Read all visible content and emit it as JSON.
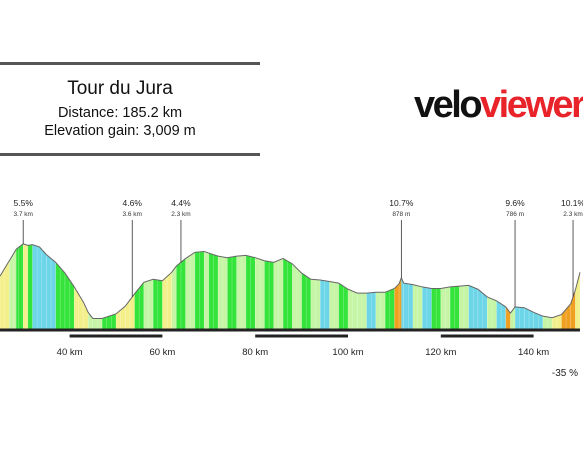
{
  "header": {
    "title": "Tour du Jura",
    "distance": "Distance: 185.2 km",
    "elevation_gain": "Elevation gain: 3,009 m"
  },
  "logo": {
    "part1": "velo",
    "part2": "viewer"
  },
  "colors": {
    "brand_red": "#e8232a",
    "grade_yellow": "#f3f08c",
    "grade_pale_green": "#c5f5a5",
    "grade_green": "#35e43a",
    "grade_cyan": "#6cd6e8",
    "grade_orange": "#f0a020"
  },
  "chart_data": {
    "type": "area",
    "title": "",
    "xlabel": "",
    "ylabel": "",
    "x_unit": "km",
    "xlim": [
      25,
      150
    ],
    "x_ticks": [
      "40 km",
      "60 km",
      "80 km",
      "100 km",
      "120 km",
      "140 km"
    ],
    "x_tick_values": [
      40,
      60,
      80,
      100,
      120,
      140
    ],
    "ylim": [
      0,
      1300
    ],
    "profile_km": [
      25,
      27,
      28.5,
      30,
      31,
      32,
      33.5,
      35,
      37,
      39,
      41,
      43,
      44,
      45,
      47,
      50,
      52,
      54,
      56,
      58,
      60,
      62,
      63,
      65,
      67,
      69,
      70,
      72,
      74,
      76,
      78,
      80,
      82,
      84,
      86,
      88,
      90,
      92,
      94,
      96,
      98,
      100,
      102,
      104,
      106,
      108,
      110,
      111,
      111.5,
      112,
      114,
      116,
      118,
      120,
      122,
      124,
      126,
      128,
      130,
      132,
      134,
      135,
      136,
      138,
      140,
      142,
      144,
      146,
      148,
      149,
      150
    ],
    "profile_elev": [
      700,
      900,
      1050,
      1120,
      1100,
      1110,
      1080,
      980,
      880,
      740,
      560,
      360,
      230,
      150,
      150,
      210,
      310,
      470,
      620,
      660,
      640,
      750,
      830,
      930,
      1010,
      1020,
      1000,
      960,
      940,
      960,
      970,
      940,
      900,
      880,
      930,
      860,
      740,
      660,
      650,
      630,
      610,
      530,
      480,
      480,
      490,
      490,
      540,
      600,
      680,
      610,
      590,
      560,
      540,
      540,
      560,
      570,
      580,
      530,
      430,
      380,
      300,
      220,
      300,
      290,
      230,
      180,
      160,
      200,
      340,
      520,
      750
    ],
    "grade_colors": [
      "yellow",
      "pale_green",
      "green",
      "yellow",
      "green",
      "cyan",
      "cyan",
      "cyan",
      "green",
      "green",
      "yellow",
      "yellow",
      "pale_green",
      "pale_green",
      "green",
      "yellow",
      "yellow",
      "green",
      "pale_green",
      "green",
      "yellow",
      "pale_green",
      "green",
      "pale_green",
      "green",
      "pale_green",
      "green",
      "pale_green",
      "green",
      "pale_green",
      "green",
      "pale_green",
      "green",
      "pale_green",
      "green",
      "pale_green",
      "green",
      "pale_green",
      "cyan",
      "pale_green",
      "green",
      "pale_green",
      "pale_green",
      "cyan",
      "pale_green",
      "green",
      "orange",
      "orange",
      "cyan",
      "cyan",
      "pale_green",
      "cyan",
      "green",
      "pale_green",
      "green",
      "pale_green",
      "cyan",
      "cyan",
      "pale_green",
      "cyan",
      "orange",
      "pale_green",
      "cyan",
      "cyan",
      "cyan",
      "pale_green",
      "yellow",
      "orange",
      "orange",
      "yellow"
    ],
    "climbs": [
      {
        "km": 30,
        "gradient": "5.5%",
        "length": "3.7 km"
      },
      {
        "km": 53.5,
        "gradient": "4.6%",
        "length": "3.6 km"
      },
      {
        "km": 64,
        "gradient": "4.4%",
        "length": "2.3 km"
      },
      {
        "km": 111.5,
        "gradient": "10.7%",
        "length": "878 m"
      },
      {
        "km": 136,
        "gradient": "9.6%",
        "length": "786 m"
      },
      {
        "km": 148.5,
        "gradient": "10.1%",
        "length": "2.3 km"
      }
    ],
    "legend": {
      "min_label": "-35 %",
      "placement": "bottom-right"
    },
    "grid": false
  }
}
